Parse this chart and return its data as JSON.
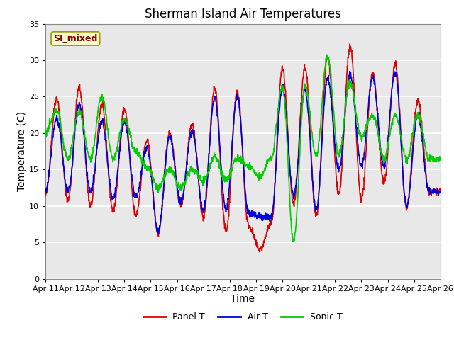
{
  "title": "Sherman Island Air Temperatures",
  "xlabel": "Time",
  "ylabel": "Temperature (C)",
  "ylim": [
    0,
    35
  ],
  "yticks": [
    0,
    5,
    10,
    15,
    20,
    25,
    30,
    35
  ],
  "xtick_labels": [
    "Apr 11",
    "Apr 12",
    "Apr 13",
    "Apr 14",
    "Apr 15",
    "Apr 16",
    "Apr 17",
    "Apr 18",
    "Apr 19",
    "Apr 20",
    "Apr 21",
    "Apr 22",
    "Apr 23",
    "Apr 24",
    "Apr 25",
    "Apr 26"
  ],
  "label_box_text": "SI_mixed",
  "label_box_facecolor": "#ffffcc",
  "label_box_edgecolor": "#999900",
  "label_box_textcolor": "#880000",
  "panel_color": "#dd0000",
  "air_color": "#0000dd",
  "sonic_color": "#00cc00",
  "legend_labels": [
    "Panel T",
    "Air T",
    "Sonic T"
  ],
  "fig_facecolor": "#ffffff",
  "axes_facecolor": "#e8e8e8",
  "grid_color": "#ffffff",
  "title_fontsize": 12,
  "axis_fontsize": 10,
  "tick_fontsize": 8,
  "line_width": 1.2,
  "panel_peaks": [
    11.5,
    24.8,
    10.8,
    26.2,
    10.0,
    23.8,
    9.3,
    23.3,
    8.7,
    18.9,
    6.2,
    20.1,
    10.1,
    21.3,
    8.5,
    26.0,
    6.5,
    25.7,
    7.3,
    4.0,
    7.5,
    28.8,
    10.2,
    29.0,
    8.7,
    30.5,
    11.7,
    31.8,
    11.0,
    28.3,
    13.2,
    29.4,
    9.7,
    24.6,
    11.8,
    12.0
  ],
  "air_peaks": [
    12.0,
    22.0,
    12.0,
    24.0,
    12.0,
    21.5,
    11.0,
    21.5,
    11.2,
    18.0,
    6.5,
    19.5,
    10.5,
    20.3,
    9.5,
    24.8,
    9.5,
    25.0,
    9.0,
    8.5,
    8.5,
    26.0,
    11.5,
    26.0,
    9.5,
    27.5,
    15.0,
    28.0,
    15.5,
    27.5,
    15.5,
    28.3,
    10.0,
    22.5,
    12.0,
    12.0
  ],
  "sonic_peaks": [
    20.2,
    23.0,
    16.5,
    23.0,
    16.5,
    25.0,
    16.5,
    22.0,
    17.5,
    15.3,
    12.5,
    15.0,
    12.5,
    15.0,
    13.5,
    16.8,
    13.5,
    16.5,
    15.5,
    14.0,
    16.5,
    26.5,
    5.3,
    26.5,
    17.0,
    30.5,
    17.0,
    27.0,
    19.5,
    22.5,
    16.5,
    22.5,
    16.5,
    22.5,
    16.5,
    16.5
  ]
}
